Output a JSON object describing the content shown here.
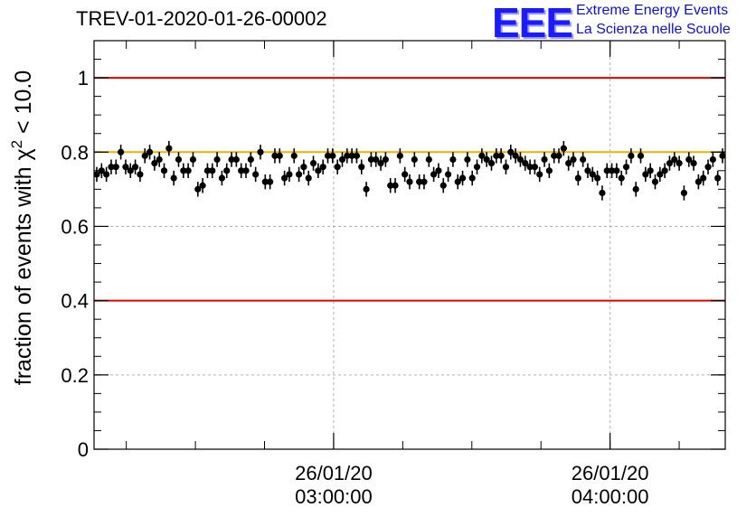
{
  "title": "TREV-01-2020-01-26-00002",
  "logo": {
    "mark": "EEE",
    "line1": "Extreme Energy Events",
    "line2": "La Scienza nelle Scuole",
    "color": "#1b1bff"
  },
  "chart_data": {
    "type": "scatter",
    "ylabel_prefix": "fraction of events with χ",
    "ylabel_sup": "2",
    "ylabel_suffix": " < 10.0",
    "xlabel": "",
    "ylim": [
      0,
      1.1
    ],
    "x_time_range": [
      "02:08:00",
      "04:25:00"
    ],
    "yticks": [
      {
        "value": 0,
        "label": "0"
      },
      {
        "value": 0.2,
        "label": "0.2"
      },
      {
        "value": 0.4,
        "label": "0.4"
      },
      {
        "value": 0.6,
        "label": "0.6"
      },
      {
        "value": 0.8,
        "label": "0.8"
      },
      {
        "value": 1,
        "label": "1"
      }
    ],
    "xticks": [
      {
        "time": "03:00:00",
        "label_date": "26/01/20",
        "label_time": "03:00:00"
      },
      {
        "time": "04:00:00",
        "label_date": "26/01/20",
        "label_time": "04:00:00"
      }
    ],
    "reference_lines": [
      {
        "y": 1.0,
        "color": "#e00000"
      },
      {
        "y": 0.4,
        "color": "#e00000"
      },
      {
        "y": 0.8,
        "color": "#f0b000"
      }
    ],
    "grid": true,
    "error_bar": 0.02,
    "series": [
      {
        "values": [
          0.74,
          0.75,
          0.74,
          0.76,
          0.76,
          0.8,
          0.76,
          0.75,
          0.76,
          0.74,
          0.79,
          0.8,
          0.77,
          0.78,
          0.75,
          0.81,
          0.73,
          0.78,
          0.75,
          0.75,
          0.78,
          0.7,
          0.71,
          0.75,
          0.75,
          0.78,
          0.73,
          0.75,
          0.78,
          0.78,
          0.75,
          0.75,
          0.78,
          0.74,
          0.8,
          0.72,
          0.72,
          0.79,
          0.79,
          0.73,
          0.74,
          0.79,
          0.74,
          0.76,
          0.73,
          0.77,
          0.75,
          0.76,
          0.79,
          0.79,
          0.76,
          0.78,
          0.79,
          0.79,
          0.79,
          0.76,
          0.7,
          0.78,
          0.78,
          0.77,
          0.78,
          0.71,
          0.71,
          0.79,
          0.74,
          0.72,
          0.78,
          0.72,
          0.72,
          0.78,
          0.74,
          0.75,
          0.71,
          0.74,
          0.78,
          0.72,
          0.73,
          0.78,
          0.73,
          0.76,
          0.79,
          0.78,
          0.77,
          0.79,
          0.79,
          0.76,
          0.8,
          0.79,
          0.78,
          0.77,
          0.76,
          0.76,
          0.74,
          0.78,
          0.75,
          0.79,
          0.79,
          0.81,
          0.77,
          0.78,
          0.73,
          0.78,
          0.75,
          0.74,
          0.73,
          0.69,
          0.75,
          0.75,
          0.75,
          0.73,
          0.76,
          0.79,
          0.7,
          0.79,
          0.74,
          0.75,
          0.72,
          0.74,
          0.75,
          0.77,
          0.78,
          0.77,
          0.69,
          0.78,
          0.77,
          0.72,
          0.73,
          0.76,
          0.78,
          0.73,
          0.79
        ]
      }
    ]
  }
}
